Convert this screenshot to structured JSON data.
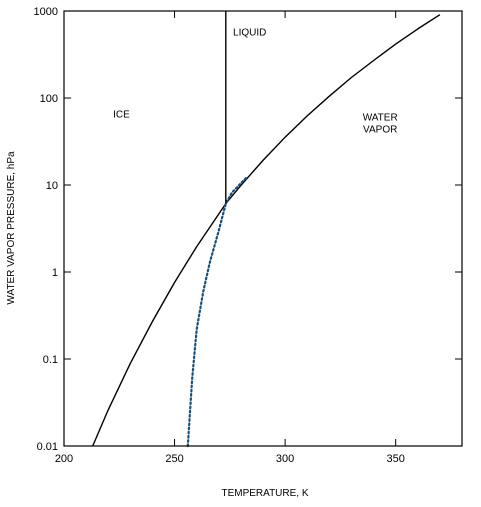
{
  "chart_data": {
    "type": "line",
    "xlabel": "TEMPERATURE, K",
    "ylabel": "WATER VAPOR PRESSURE, hPa",
    "xlim": [
      200,
      380
    ],
    "ylim": [
      0.01,
      1000
    ],
    "yscale": "log",
    "grid": false,
    "x_ticks": [
      200,
      250,
      300,
      350
    ],
    "y_ticks": [
      {
        "value": 0.01,
        "label": "0.01"
      },
      {
        "value": 0.1,
        "label": "0.1"
      },
      {
        "value": 1,
        "label": "1"
      },
      {
        "value": 10,
        "label": "10"
      },
      {
        "value": 100,
        "label": "100"
      },
      {
        "value": 1000,
        "label": "1000"
      }
    ],
    "region_labels": [
      {
        "lines": [
          "ICE"
        ],
        "x": 226,
        "y": 60
      },
      {
        "lines": [
          "LIQUID"
        ],
        "x": 284,
        "y": 520
      },
      {
        "lines": [
          "WATER",
          "VAPOR"
        ],
        "x": 343,
        "y": 55
      }
    ],
    "series": [
      {
        "style": "solid",
        "color": "#000000",
        "x": [
          213,
          220,
          230,
          240,
          250,
          260,
          273.16,
          280,
          290,
          300,
          310,
          320,
          330,
          340,
          350,
          360,
          370
        ],
        "y": [
          0.01,
          0.026,
          0.089,
          0.27,
          0.76,
          1.96,
          6.11,
          9.9,
          19.2,
          35.4,
          62.3,
          105,
          172,
          270,
          416,
          622,
          906
        ]
      },
      {
        "style": "dotted",
        "color": "#1a4f7a",
        "x": [
          256,
          258,
          260,
          263,
          266,
          270,
          273.16,
          276,
          280,
          283
        ],
        "y": [
          0.01,
          0.06,
          0.22,
          0.6,
          1.3,
          3.0,
          6.11,
          8.2,
          10.5,
          12.5
        ]
      },
      {
        "style": "solid",
        "color": "#000000",
        "x": [
          273.16,
          273.16
        ],
        "y": [
          6.11,
          1000
        ]
      }
    ]
  }
}
